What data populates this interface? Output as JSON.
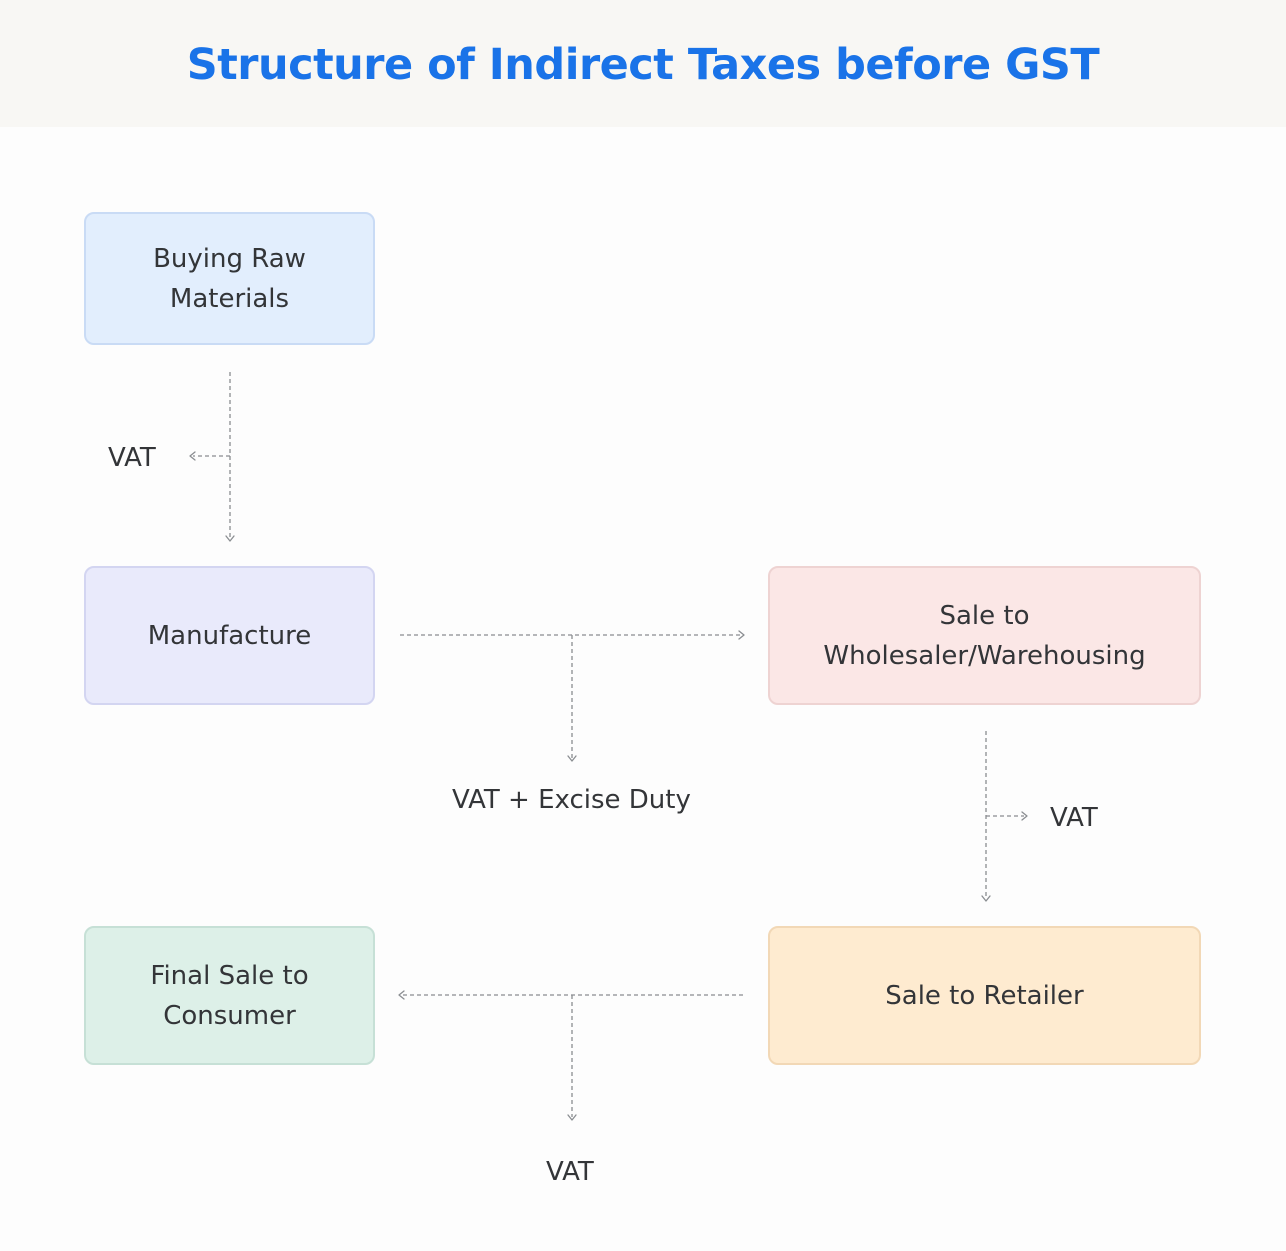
{
  "title": "Structure of Indirect Taxes before GST",
  "colors": {
    "title": "#1a73e8",
    "connector": "#8a8d91",
    "raw_materials_fill": "#e2eefd",
    "manufacture_fill": "#e9eafb",
    "wholesale_fill": "#fbe7e6",
    "retailer_fill": "#feebd0",
    "final_sale_fill": "#ddf0e8"
  },
  "nodes": {
    "raw_materials": "Buying Raw\nMaterials",
    "manufacture": "Manufacture",
    "wholesale": "Sale to\nWholesaler/Warehousing",
    "retailer": "Sale to Retailer",
    "final_sale": "Final Sale to\nConsumer"
  },
  "tax_labels": {
    "raw_to_manufacture": "VAT",
    "manufacture_to_wholesale": "VAT + Excise Duty",
    "wholesale_to_retailer": "VAT",
    "retailer_to_consumer": "VAT"
  }
}
